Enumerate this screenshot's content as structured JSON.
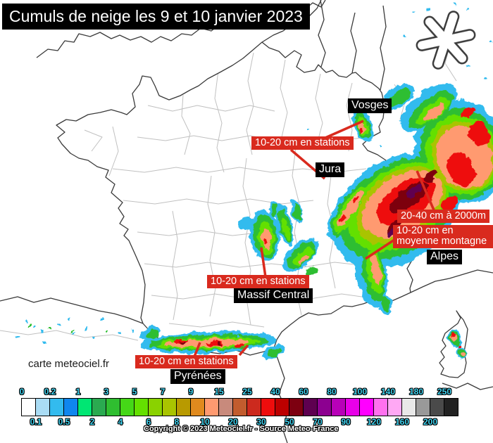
{
  "title": "Cumuls de neige les 9 et 10 janvier 2023",
  "watermark": "carte meteociel.fr",
  "copyright": "Copyright © 2023 Meteociel.fr - Source Meteo-France",
  "region_labels": {
    "vosges": "Vosges",
    "jura": "Jura",
    "alpes": "Alpes",
    "massif_central": "Massif Central",
    "pyrenees": "Pyrénées"
  },
  "annotations": {
    "northeast_stations": "10-20 cm en stations",
    "alps_2000m": "20-40 cm à 2000m",
    "alps_mid_mountain": "10-20 cm en moyenne montagne",
    "massif_stations": "10-20 cm en stations",
    "pyrenees_stations": "10-20 cm en stations"
  },
  "legend": {
    "boundaries_cm": [
      "0",
      "0.1",
      "0.2",
      "0.5",
      "1",
      "2",
      "3",
      "4",
      "5",
      "6",
      "7",
      "8",
      "9",
      "10",
      "15",
      "20",
      "25",
      "30",
      "40",
      "50",
      "60",
      "70",
      "80",
      "90",
      "100",
      "120",
      "140",
      "160",
      "180",
      "200",
      "250"
    ],
    "colors": [
      "#ffffff",
      "#aadcf4",
      "#33bbee",
      "#0f86ee",
      "#00e673",
      "#2aaa50",
      "#2fbe30",
      "#45d717",
      "#64e000",
      "#8ad200",
      "#a9c400",
      "#b89a00",
      "#e08a1e",
      "#ff9a70",
      "#c88a7c",
      "#c25c2e",
      "#cc2a1e",
      "#ee0d0d",
      "#bd0000",
      "#7d0010",
      "#5e0050",
      "#8c0090",
      "#b800b8",
      "#e800e8",
      "#ff00ff",
      "#ff70ee",
      "#ffa8f4",
      "#e8e8e8",
      "#999999",
      "#4a4a4a",
      "#222222"
    ]
  },
  "colors": {
    "annotation_red": "#d92a1e",
    "label_bg": "#000000",
    "legend_text": "#3fd2ef"
  }
}
